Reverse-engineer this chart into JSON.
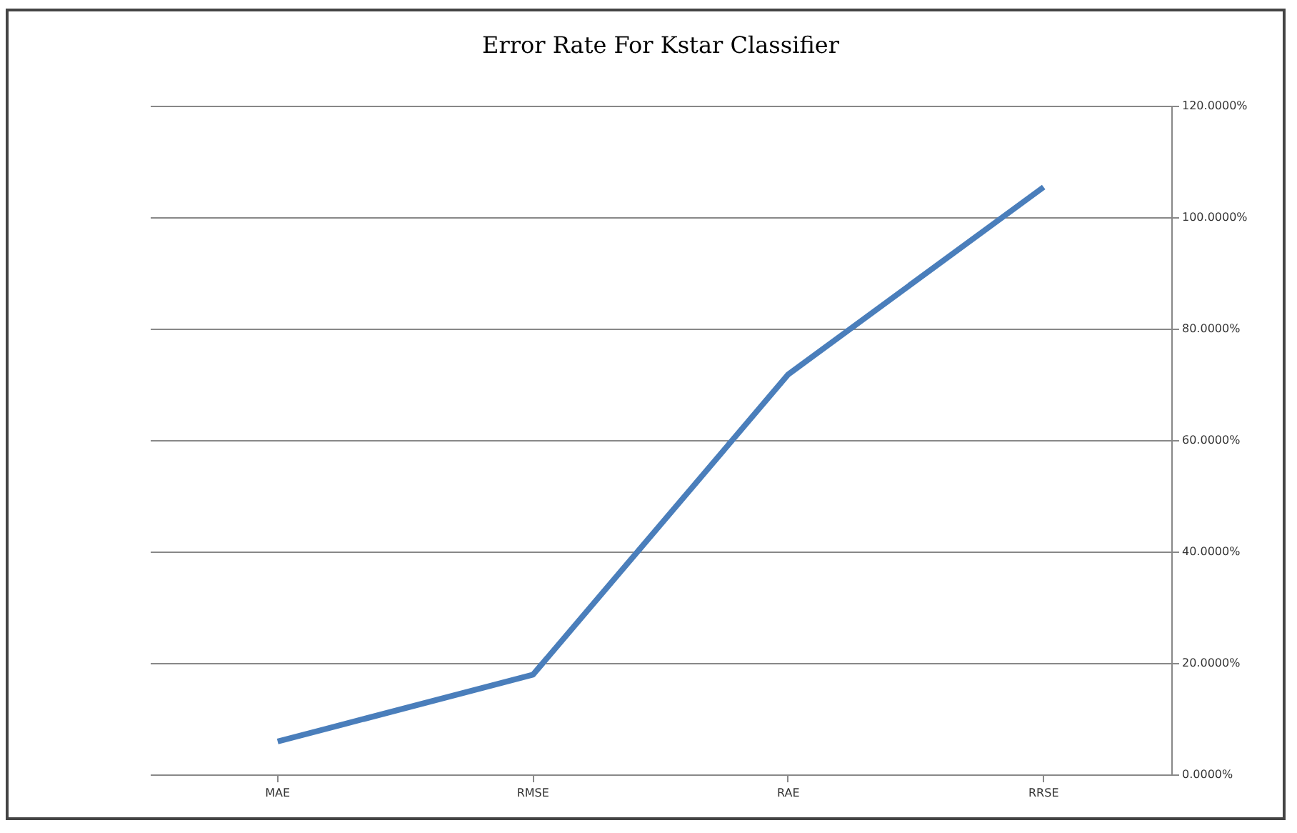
{
  "chart_data": {
    "type": "line",
    "title": "Error Rate For Kstar Classifier",
    "categories": [
      "MAE",
      "RMSE",
      "RAE",
      "RRSE"
    ],
    "series": [
      {
        "color": "#4a7ebb",
        "values": [
          5.9,
          17.9,
          71.8,
          105.4
        ]
      }
    ],
    "ylim": [
      0,
      120
    ],
    "yticks": [
      {
        "value": 0,
        "label": "0.0000%"
      },
      {
        "value": 20,
        "label": "20.0000%"
      },
      {
        "value": 40,
        "label": "40.0000%"
      },
      {
        "value": 60,
        "label": "60.0000%"
      },
      {
        "value": 80,
        "label": "80.0000%"
      },
      {
        "value": 100,
        "label": "100.0000%"
      },
      {
        "value": 120,
        "label": "120.0000%"
      }
    ],
    "grid": "y",
    "marker": "none",
    "line_style": "solid"
  }
}
